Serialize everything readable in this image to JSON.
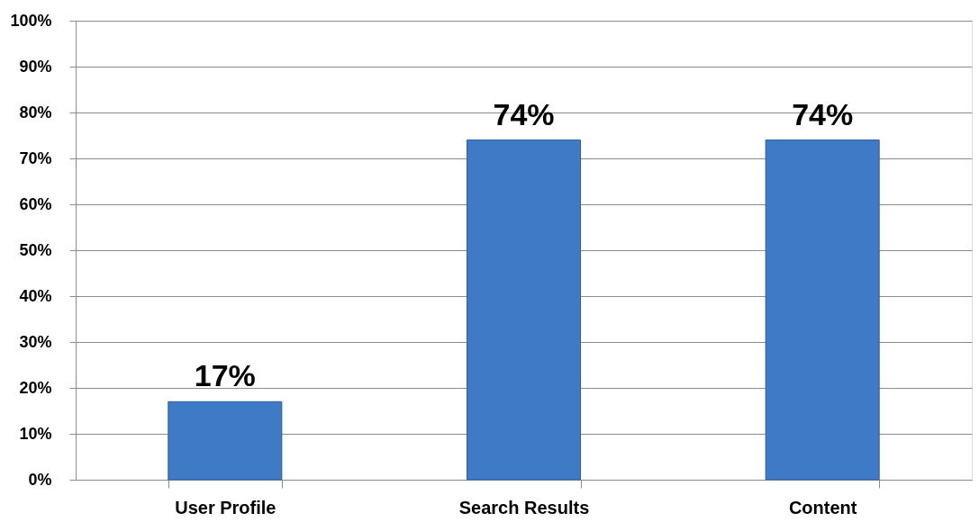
{
  "chart_data": {
    "type": "bar",
    "categories": [
      "User Profile",
      "Search Results",
      "Content"
    ],
    "values": [
      17,
      74,
      74
    ],
    "value_labels": [
      "17%",
      "74%",
      "74%"
    ],
    "color": "#3f7ac6",
    "ylim": [
      0,
      100
    ],
    "yticks": [
      {
        "value": 0,
        "label": "0%"
      },
      {
        "value": 10,
        "label": "10%"
      },
      {
        "value": 20,
        "label": "20%"
      },
      {
        "value": 30,
        "label": "30%"
      },
      {
        "value": 40,
        "label": "40%"
      },
      {
        "value": 50,
        "label": "50%"
      },
      {
        "value": 60,
        "label": "60%"
      },
      {
        "value": 70,
        "label": "70%"
      },
      {
        "value": 80,
        "label": "80%"
      },
      {
        "value": 90,
        "label": "90%"
      },
      {
        "value": 100,
        "label": "100%"
      }
    ],
    "grid": "y"
  }
}
